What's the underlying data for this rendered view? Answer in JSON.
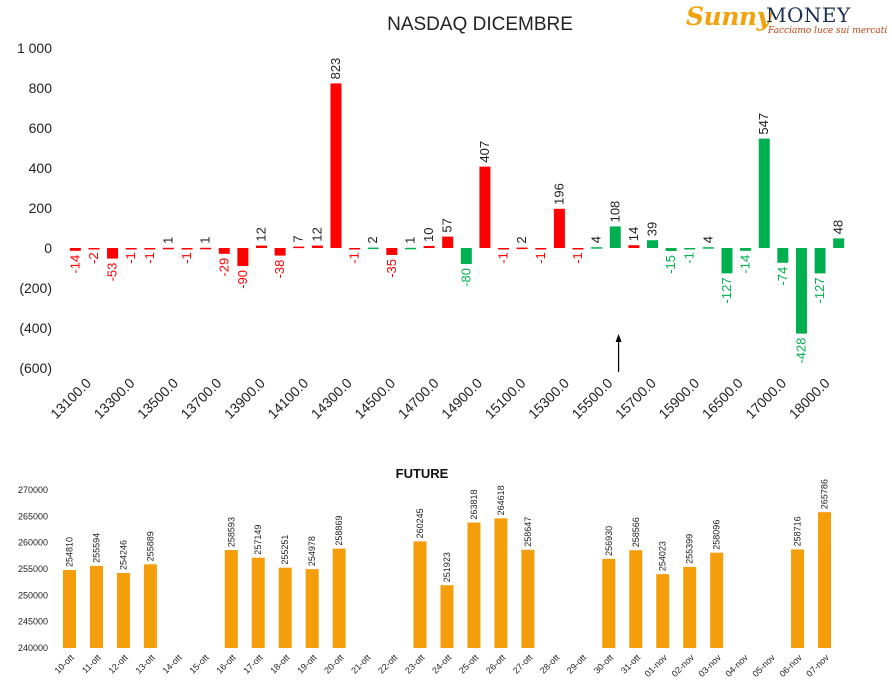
{
  "brand": {
    "name_part1": "Sunny",
    "name_part2": "MONEY",
    "tagline": "Facciamo luce sui mercati"
  },
  "colors": {
    "negative_gamma": "#ff0000",
    "positive_gamma": "#00b050",
    "future_bar": "#f59e0b",
    "arrow": "#000000"
  },
  "chart_data": [
    {
      "type": "bar",
      "title": "NASDAQ DICEMBRE",
      "xlabel": "",
      "ylabel": "",
      "ylim": [
        -600,
        1000
      ],
      "yticks": [
        1000,
        800,
        600,
        400,
        200,
        0,
        -200,
        -400,
        -600
      ],
      "ytick_labels": [
        "1 000",
        "800",
        "600",
        "400",
        "200",
        "0",
        "(200)",
        "(400)",
        "(600)"
      ],
      "grid": false,
      "legend": "none",
      "x_tick_labels": [
        "13100.0",
        "13300.0",
        "13500.0",
        "13700.0",
        "13900.0",
        "14100.0",
        "14300.0",
        "14500.0",
        "14700.0",
        "14900.0",
        "15100.0",
        "15300.0",
        "15500.0",
        "15700.0",
        "15900.0",
        "16500.0",
        "17000.0",
        "18000.0"
      ],
      "bars": [
        {
          "value": -14,
          "color": "red"
        },
        {
          "value": -2,
          "color": "red"
        },
        {
          "value": -53,
          "color": "red"
        },
        {
          "value": -1,
          "color": "red"
        },
        {
          "value": -1,
          "color": "red"
        },
        {
          "value": 1,
          "color": "red"
        },
        {
          "value": -1,
          "color": "red"
        },
        {
          "value": 1,
          "color": "red"
        },
        {
          "value": -29,
          "color": "red"
        },
        {
          "value": -90,
          "color": "red"
        },
        {
          "value": 12,
          "color": "red"
        },
        {
          "value": -38,
          "color": "red"
        },
        {
          "value": 7,
          "color": "red"
        },
        {
          "value": 12,
          "color": "red"
        },
        {
          "value": 823,
          "color": "red"
        },
        {
          "value": -1,
          "color": "red"
        },
        {
          "value": 2,
          "color": "green"
        },
        {
          "value": -35,
          "color": "red"
        },
        {
          "value": 1,
          "color": "green"
        },
        {
          "value": 10,
          "color": "red"
        },
        {
          "value": 57,
          "color": "red"
        },
        {
          "value": -80,
          "color": "green"
        },
        {
          "value": 407,
          "color": "red"
        },
        {
          "value": -1,
          "color": "red"
        },
        {
          "value": 2,
          "color": "red"
        },
        {
          "value": -1,
          "color": "red"
        },
        {
          "value": 196,
          "color": "red"
        },
        {
          "value": -1,
          "color": "red"
        },
        {
          "value": 4,
          "color": "green"
        },
        {
          "value": 108,
          "color": "green"
        },
        {
          "value": 14,
          "color": "red"
        },
        {
          "value": 39,
          "color": "green"
        },
        {
          "value": -15,
          "color": "green"
        },
        {
          "value": -1,
          "color": "green"
        },
        {
          "value": 4,
          "color": "green"
        },
        {
          "value": -127,
          "color": "green"
        },
        {
          "value": -14,
          "color": "green"
        },
        {
          "value": 547,
          "color": "green"
        },
        {
          "value": -74,
          "color": "green"
        },
        {
          "value": -428,
          "color": "green"
        },
        {
          "value": -127,
          "color": "green"
        },
        {
          "value": 48,
          "color": "green"
        }
      ],
      "annotation": {
        "type": "arrow",
        "bar_index": 29.5
      }
    },
    {
      "type": "bar",
      "title": "FUTURE",
      "xlabel": "",
      "ylabel": "",
      "ylim": [
        240000,
        270000
      ],
      "yticks": [
        240000,
        245000,
        250000,
        255000,
        260000,
        265000,
        270000
      ],
      "grid": false,
      "legend": "none",
      "categories": [
        "10-ott",
        "11-ott",
        "12-ott",
        "13-ott",
        "14-ott",
        "15-ott",
        "16-ott",
        "17-ott",
        "18-ott",
        "19-ott",
        "20-ott",
        "21-ott",
        "22-ott",
        "23-ott",
        "24-ott",
        "25-ott",
        "26-ott",
        "27-ott",
        "28-ott",
        "29-ott",
        "30-ott",
        "31-ott",
        "01-nov",
        "02-nov",
        "03-nov",
        "04-nov",
        "05-nov",
        "06-nov",
        "07-nov"
      ],
      "values": [
        254810,
        255594,
        254246,
        255889,
        null,
        null,
        258593,
        257149,
        255251,
        254978,
        258869,
        null,
        null,
        260245,
        251923,
        263818,
        264618,
        258647,
        null,
        null,
        256930,
        258566,
        254023,
        255399,
        258096,
        null,
        null,
        258716,
        265786
      ]
    }
  ]
}
